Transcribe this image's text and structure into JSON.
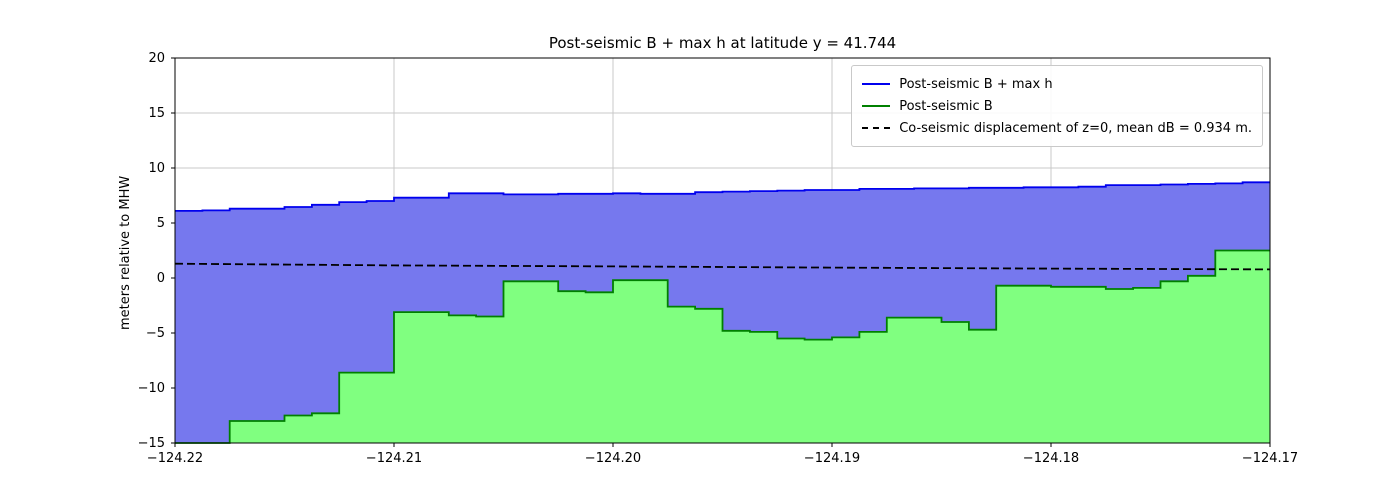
{
  "chart_data": {
    "type": "area",
    "title": "Post-seismic B + max h at latitude y = 41.744",
    "xlabel": "",
    "ylabel": "meters relative to MHW",
    "xlim": [
      -124.22,
      -124.17
    ],
    "ylim": [
      -15,
      20
    ],
    "grid": true,
    "legend_position": "upper right",
    "xticks": [
      -124.22,
      -124.21,
      -124.2,
      -124.19,
      -124.18,
      -124.17
    ],
    "xtick_labels": [
      "−124.22",
      "−124.21",
      "−124.20",
      "−124.19",
      "−124.18",
      "−124.17"
    ],
    "yticks": [
      -15,
      -10,
      -5,
      0,
      5,
      10,
      15,
      20
    ],
    "ytick_labels": [
      "−15",
      "−10",
      "−5",
      "0",
      "5",
      "10",
      "15",
      "20"
    ],
    "colors": {
      "blue_line": "#0000ee",
      "blue_fill": "#7678ee",
      "green_line": "#008000",
      "green_fill": "#80ff80",
      "dashed": "#000000",
      "grid": "#c8c8c8"
    },
    "legend": [
      {
        "label": "Post-seismic B + max h",
        "color": "#0000ee",
        "dash": false
      },
      {
        "label": "Post-seismic B",
        "color": "#008000",
        "dash": false
      },
      {
        "label": "Co-seismic displacement of z=0, mean dB = 0.934 m.",
        "color": "#000000",
        "dash": true
      }
    ],
    "steps": {
      "x_start": -124.22,
      "x_end": -124.17,
      "n": 40,
      "series": [
        {
          "name": "Post-seismic B + max h",
          "values": [
            6.1,
            6.15,
            6.3,
            6.3,
            6.45,
            6.65,
            6.9,
            7.0,
            7.3,
            7.3,
            7.7,
            7.7,
            7.6,
            7.6,
            7.65,
            7.65,
            7.7,
            7.65,
            7.65,
            7.8,
            7.85,
            7.9,
            7.95,
            8.0,
            8.0,
            8.1,
            8.1,
            8.15,
            8.15,
            8.2,
            8.2,
            8.25,
            8.25,
            8.3,
            8.45,
            8.45,
            8.5,
            8.55,
            8.6,
            8.7
          ]
        },
        {
          "name": "Post-seismic B",
          "values": [
            -15.5,
            -15.3,
            -13.0,
            -13.0,
            -12.5,
            -12.3,
            -8.6,
            -8.6,
            -3.1,
            -3.1,
            -3.4,
            -3.5,
            -0.3,
            -0.3,
            -1.2,
            -1.3,
            -0.2,
            -0.2,
            -2.6,
            -2.8,
            -4.8,
            -4.9,
            -5.5,
            -5.6,
            -5.4,
            -4.9,
            -3.6,
            -3.6,
            -4.0,
            -4.7,
            -0.7,
            -0.7,
            -0.8,
            -0.8,
            -1.0,
            -0.9,
            -0.3,
            0.2,
            2.5,
            2.5
          ]
        }
      ]
    },
    "dashed_line": {
      "name": "Co-seismic displacement of z=0",
      "mean_dB_m": 0.934,
      "x": [
        -124.22,
        -124.21,
        -124.2,
        -124.19,
        -124.18,
        -124.17
      ],
      "y": [
        1.3,
        1.15,
        1.05,
        0.95,
        0.85,
        0.78
      ]
    }
  }
}
